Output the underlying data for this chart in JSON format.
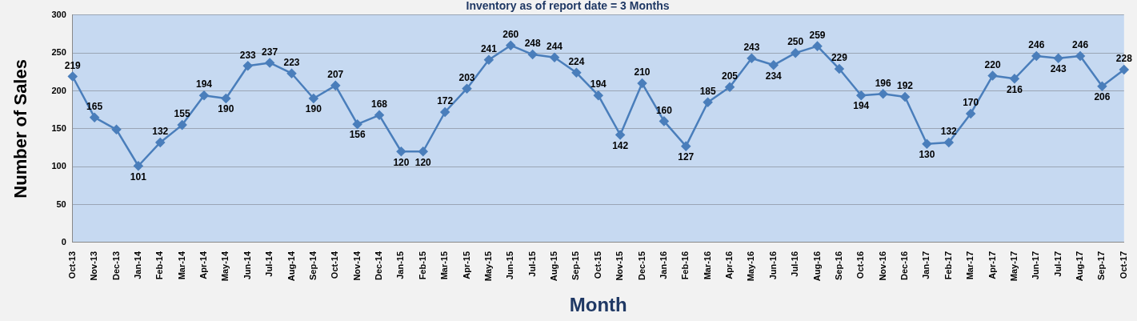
{
  "chart_data": {
    "type": "line",
    "title": "Inventory as of report date = 3 Months",
    "xlabel": "Month",
    "ylabel": "Number of Sales",
    "categories": [
      "Oct-13",
      "Nov-13",
      "Dec-13",
      "Jan-14",
      "Feb-14",
      "Mar-14",
      "Apr-14",
      "May-14",
      "Jun-14",
      "Jul-14",
      "Aug-14",
      "Sep-14",
      "Oct-14",
      "Nov-14",
      "Dec-14",
      "Jan-15",
      "Feb-15",
      "Mar-15",
      "Apr-15",
      "May-15",
      "Jun-15",
      "Jul-15",
      "Aug-15",
      "Sep-15",
      "Oct-15",
      "Nov-15",
      "Dec-15",
      "Jan-16",
      "Feb-16",
      "Mar-16",
      "Apr-16",
      "May-16",
      "Jun-16",
      "Jul-16",
      "Aug-16",
      "Sep-16",
      "Oct-16",
      "Nov-16",
      "Dec-16",
      "Jan-17",
      "Feb-17",
      "Mar-17",
      "Apr-17",
      "May-17",
      "Jun-17",
      "Jul-17",
      "Aug-17",
      "Sep-17",
      "Oct-17"
    ],
    "series": [
      {
        "color": "#4a7ebb",
        "values": [
          219,
          165,
          149,
          101,
          132,
          155,
          194,
          190,
          233,
          237,
          223,
          190,
          207,
          156,
          168,
          120,
          120,
          172,
          203,
          241,
          260,
          248,
          244,
          224,
          194,
          142,
          210,
          160,
          127,
          185,
          205,
          243,
          234,
          250,
          259,
          229,
          194,
          196,
          192,
          130,
          132,
          170,
          220,
          216,
          246,
          243,
          246,
          206,
          228
        ],
        "value_labels": [
          "219",
          "165",
          null,
          "101",
          "132",
          "155",
          "194",
          "190",
          "233",
          "237",
          "223",
          "190",
          "207",
          "156",
          "168",
          "120",
          "120",
          "172",
          "203",
          "241",
          "260",
          "248",
          "244",
          "224",
          "194",
          "142",
          "210",
          "160",
          "127",
          "185",
          "205",
          "243",
          "234",
          "250",
          "259",
          "229",
          "194",
          "196",
          "192",
          "130",
          "132",
          "170",
          "220",
          "216",
          "246",
          "243",
          "246",
          "206",
          "228"
        ]
      }
    ],
    "ylim": [
      0,
      300
    ],
    "yticks": [
      0,
      50,
      100,
      150,
      200,
      250,
      300
    ],
    "grid": "y",
    "legend": false,
    "marker": "diamond",
    "line_style": "solid"
  }
}
